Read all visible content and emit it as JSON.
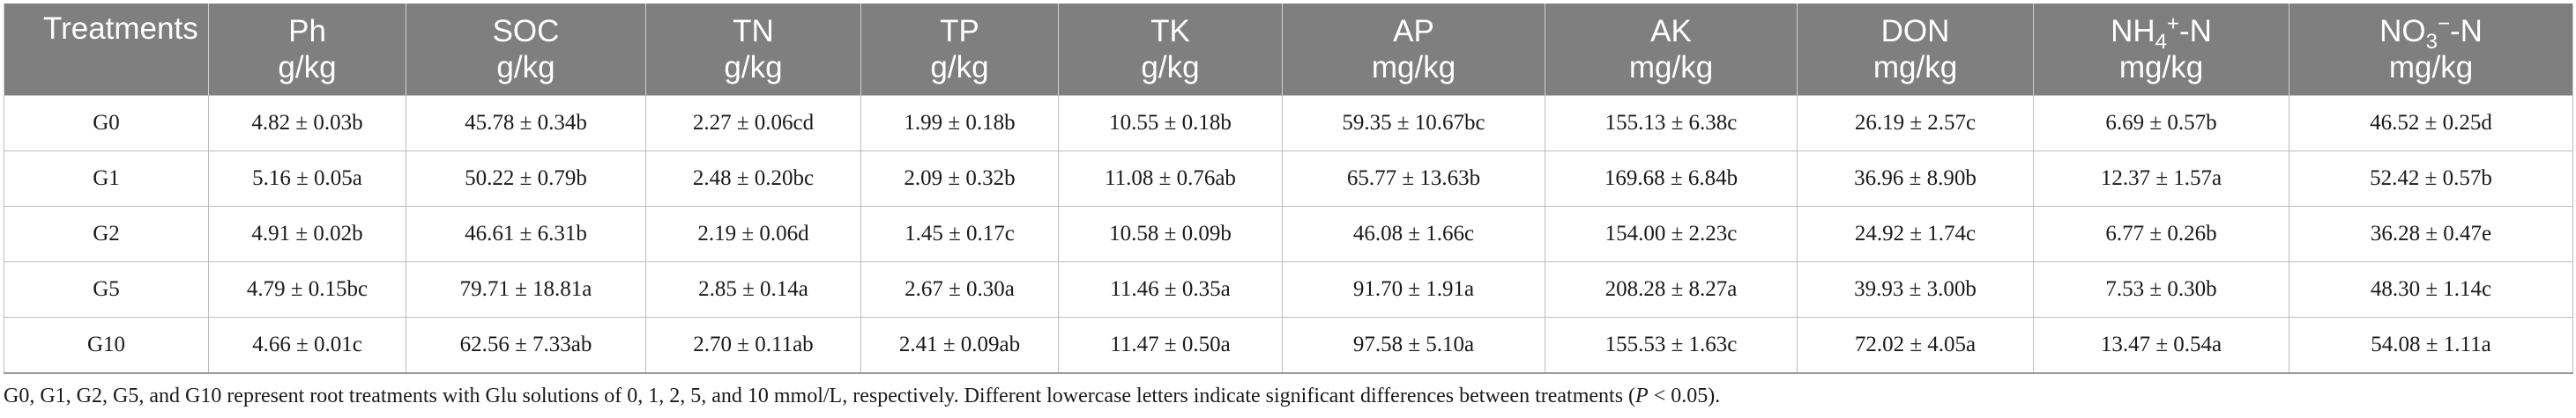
{
  "table": {
    "columns": [
      {
        "line1": "Treatments",
        "line2": ""
      },
      {
        "line1": "Ph",
        "line2": "g/kg"
      },
      {
        "line1": "SOC",
        "line2": "g/kg"
      },
      {
        "line1": "TN",
        "line2": "g/kg"
      },
      {
        "line1": "TP",
        "line2": "g/kg"
      },
      {
        "line1": "TK",
        "line2": "g/kg"
      },
      {
        "line1": "AP",
        "line2": "mg/kg"
      },
      {
        "line1": "AK",
        "line2": "mg/kg"
      },
      {
        "line1": "DON",
        "line2": "mg/kg"
      },
      {
        "line1_pre": "NH",
        "line1_sub": "4",
        "line1_sup": "+",
        "line1_post": "-N",
        "line2": "mg/kg"
      },
      {
        "line1_pre": "NO",
        "line1_sub": "3",
        "line1_sup": "−",
        "line1_post": "-N",
        "line2": "mg/kg"
      }
    ],
    "rows": [
      [
        "G0",
        "4.82 ± 0.03b",
        "45.78 ± 0.34b",
        "2.27 ± 0.06cd",
        "1.99 ± 0.18b",
        "10.55 ± 0.18b",
        "59.35 ± 10.67bc",
        "155.13 ± 6.38c",
        "26.19 ± 2.57c",
        "6.69 ± 0.57b",
        "46.52 ± 0.25d"
      ],
      [
        "G1",
        "5.16 ± 0.05a",
        "50.22 ± 0.79b",
        "2.48 ± 0.20bc",
        "2.09 ± 0.32b",
        "11.08 ± 0.76ab",
        "65.77 ± 13.63b",
        "169.68 ± 6.84b",
        "36.96 ± 8.90b",
        "12.37 ± 1.57a",
        "52.42 ± 0.57b"
      ],
      [
        "G2",
        "4.91 ± 0.02b",
        "46.61 ± 6.31b",
        "2.19 ± 0.06d",
        "1.45 ± 0.17c",
        "10.58 ± 0.09b",
        "46.08 ± 1.66c",
        "154.00 ± 2.23c",
        "24.92 ± 1.74c",
        "6.77 ± 0.26b",
        "36.28 ± 0.47e"
      ],
      [
        "G5",
        "4.79 ± 0.15bc",
        "79.71 ± 18.81a",
        "2.85 ± 0.14a",
        "2.67 ± 0.30a",
        "11.46 ± 0.35a",
        "91.70 ± 1.91a",
        "208.28 ± 8.27a",
        "39.93 ± 3.00b",
        "7.53 ± 0.30b",
        "48.30 ± 1.14c"
      ],
      [
        "G10",
        "4.66 ± 0.01c",
        "62.56 ± 7.33ab",
        "2.70 ± 0.11ab",
        "2.41 ± 0.09ab",
        "11.47 ± 0.50a",
        "97.58 ± 5.10a",
        "155.53 ± 1.63c",
        "72.02 ± 4.05a",
        "13.47 ± 0.54a",
        "54.08 ± 1.11a"
      ]
    ]
  },
  "footnote": {
    "text_before": "G0, G1, G2, G5, and G10 represent root treatments with Glu solutions of 0, 1, 2, 5, and 10 mmol/L, respectively. Different lowercase letters indicate significant differences between treatments (",
    "p_symbol": "P",
    "text_after": " < 0.05)."
  }
}
